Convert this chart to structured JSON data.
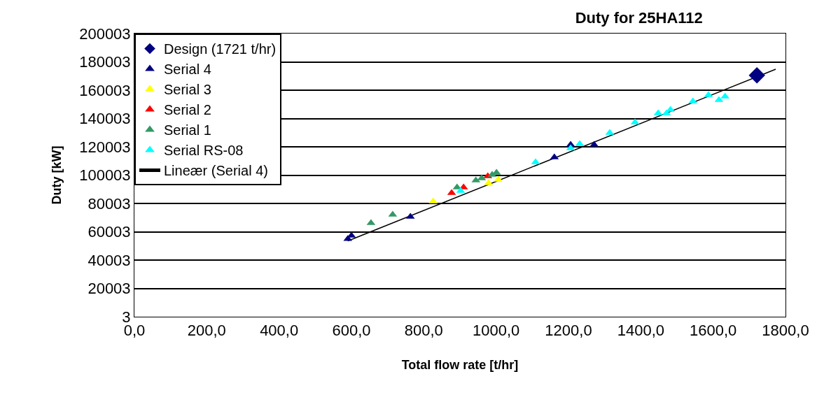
{
  "chart_data": {
    "type": "scatter",
    "title": "Duty for 25HA112",
    "xlabel": "Total flow rate [t/hr]",
    "ylabel": "Duty [kW]",
    "xlim": [
      0,
      1800
    ],
    "xticks": [
      {
        "value": 0,
        "label": "0,0"
      },
      {
        "value": 200,
        "label": "200,0"
      },
      {
        "value": 400,
        "label": "400,0"
      },
      {
        "value": 600,
        "label": "600,0"
      },
      {
        "value": 800,
        "label": "800,0"
      },
      {
        "value": 1000,
        "label": "1000,0"
      },
      {
        "value": 1200,
        "label": "1200,0"
      },
      {
        "value": 1400,
        "label": "1400,0"
      },
      {
        "value": 1600,
        "label": "1600,0"
      },
      {
        "value": 1800,
        "label": "1800,0"
      }
    ],
    "ylim": [
      3,
      200003
    ],
    "yticks": [
      3,
      20003,
      40003,
      60003,
      80003,
      100003,
      120003,
      140003,
      160003,
      180003,
      200003
    ],
    "grid": "y",
    "legend": "top left",
    "series": [
      {
        "name": "Design (1721 t/hr)",
        "color": "#000080",
        "marker": "diamond",
        "x": [
          1721
        ],
        "values": [
          170500
        ]
      },
      {
        "name": "Serial 4",
        "color": "#000080",
        "marker": "triangle",
        "x": [
          590,
          600,
          763,
          1161,
          1206,
          1271
        ],
        "values": [
          55000,
          57300,
          70600,
          112600,
          121500,
          121500
        ]
      },
      {
        "name": "Serial 3",
        "color": "#ffff00",
        "marker": "triangle",
        "x": [
          826,
          979,
          1006
        ],
        "values": [
          81500,
          94300,
          96800
        ]
      },
      {
        "name": "Serial 2",
        "color": "#ff0000",
        "marker": "triangle",
        "x": [
          877,
          910,
          977
        ],
        "values": [
          87400,
          91400,
          99300
        ]
      },
      {
        "name": "Serial 1",
        "color": "#339966",
        "marker": "triangle",
        "x": [
          654,
          714,
          892,
          944,
          960,
          989,
          1001
        ],
        "values": [
          66200,
          72100,
          91400,
          96300,
          97800,
          100200,
          101700
        ]
      },
      {
        "name": "Serial RS-08",
        "color": "#00ffff",
        "marker": "triangle",
        "x": [
          902,
          1109,
          1206,
          1231,
          1314,
          1384,
          1448,
          1471,
          1482,
          1544,
          1587,
          1616,
          1633
        ],
        "values": [
          88900,
          109100,
          119000,
          122000,
          129900,
          137300,
          143700,
          143700,
          146200,
          152100,
          156500,
          153100,
          155600
        ]
      },
      {
        "name": "Lineær (Serial 4)",
        "color": "#000000",
        "type": "line",
        "marker": "none",
        "line_style": "solid",
        "x": [
          590,
          1773
        ],
        "values": [
          53500,
          174800
        ]
      }
    ]
  }
}
